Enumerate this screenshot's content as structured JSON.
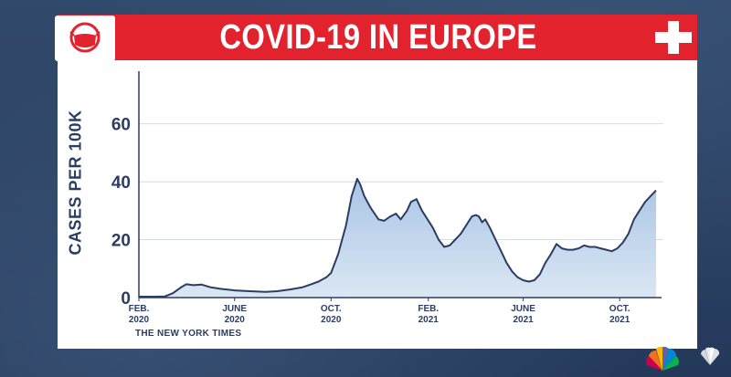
{
  "header": {
    "title": "COVID-19 IN EUROPE",
    "mask_icon": "face-mask-icon",
    "cross_icon": "swiss-cross-icon"
  },
  "colors": {
    "banner": "#e2232d",
    "line": "#2b3d63",
    "fill": "#b6cfe8",
    "background": "#2a3f5e"
  },
  "source": "THE NEW YORK TIMES",
  "chart_data": {
    "type": "area",
    "title": "",
    "ylabel": "CASES PER 100K",
    "xlabel": "",
    "ylim": [
      0,
      75
    ],
    "yticks": [
      0,
      20,
      40,
      60
    ],
    "grid": "horizontal",
    "xticks": [
      {
        "line1": "FEB.",
        "line2": "2020",
        "date": "2020-02-01"
      },
      {
        "line1": "JUNE",
        "line2": "2020",
        "date": "2020-06-01"
      },
      {
        "line1": "OCT.",
        "line2": "2020",
        "date": "2020-10-01"
      },
      {
        "line1": "FEB.",
        "line2": "2021",
        "date": "2021-02-01"
      },
      {
        "line1": "JUNE",
        "line2": "2021",
        "date": "2021-06-01"
      },
      {
        "line1": "OCT.",
        "line2": "2021",
        "date": "2021-10-01"
      }
    ],
    "series": [
      {
        "x": [
          "2020-02-01",
          "2020-02-20",
          "2020-03-05",
          "2020-03-15",
          "2020-03-25",
          "2020-04-01",
          "2020-04-10",
          "2020-04-20",
          "2020-05-01",
          "2020-05-15",
          "2020-06-01",
          "2020-06-20",
          "2020-07-10",
          "2020-07-25",
          "2020-08-10",
          "2020-08-25",
          "2020-09-05",
          "2020-09-15",
          "2020-09-25",
          "2020-10-01",
          "2020-10-10",
          "2020-10-20",
          "2020-10-27",
          "2020-11-03",
          "2020-11-07",
          "2020-11-12",
          "2020-11-20",
          "2020-11-30",
          "2020-12-07",
          "2020-12-15",
          "2020-12-22",
          "2020-12-28",
          "2021-01-05",
          "2021-01-10",
          "2021-01-17",
          "2021-01-24",
          "2021-01-31",
          "2021-02-07",
          "2021-02-14",
          "2021-02-21",
          "2021-02-28",
          "2021-03-07",
          "2021-03-14",
          "2021-03-21",
          "2021-03-28",
          "2021-04-02",
          "2021-04-06",
          "2021-04-10",
          "2021-04-14",
          "2021-04-20",
          "2021-04-27",
          "2021-05-04",
          "2021-05-11",
          "2021-05-18",
          "2021-05-25",
          "2021-06-01",
          "2021-06-08",
          "2021-06-15",
          "2021-06-22",
          "2021-06-29",
          "2021-07-06",
          "2021-07-13",
          "2021-07-20",
          "2021-07-27",
          "2021-08-03",
          "2021-08-10",
          "2021-08-17",
          "2021-08-24",
          "2021-08-31",
          "2021-09-07",
          "2021-09-14",
          "2021-09-21",
          "2021-09-28",
          "2021-10-05",
          "2021-10-12",
          "2021-10-19",
          "2021-10-26",
          "2021-11-02",
          "2021-11-09",
          "2021-11-16"
        ],
        "values": [
          0.3,
          0.3,
          0.4,
          1.5,
          3.5,
          4.6,
          4.3,
          4.5,
          3.6,
          3.0,
          2.5,
          2.2,
          2.0,
          2.2,
          2.8,
          3.5,
          4.5,
          5.5,
          7.0,
          8.5,
          15,
          25,
          35,
          41,
          39,
          35,
          31,
          27,
          26.5,
          28,
          29,
          27,
          30,
          33,
          34,
          30,
          27,
          24,
          20,
          17.5,
          18,
          20,
          22,
          25,
          28,
          28.5,
          28,
          26,
          27,
          24,
          20,
          16,
          12,
          9,
          7,
          6,
          5.5,
          6,
          8,
          12,
          15,
          18.5,
          17,
          16.5,
          16.5,
          17,
          18,
          17.5,
          17.5,
          17,
          16.5,
          16,
          17,
          19,
          22,
          27,
          30,
          33,
          35,
          37
        ]
      }
    ]
  }
}
